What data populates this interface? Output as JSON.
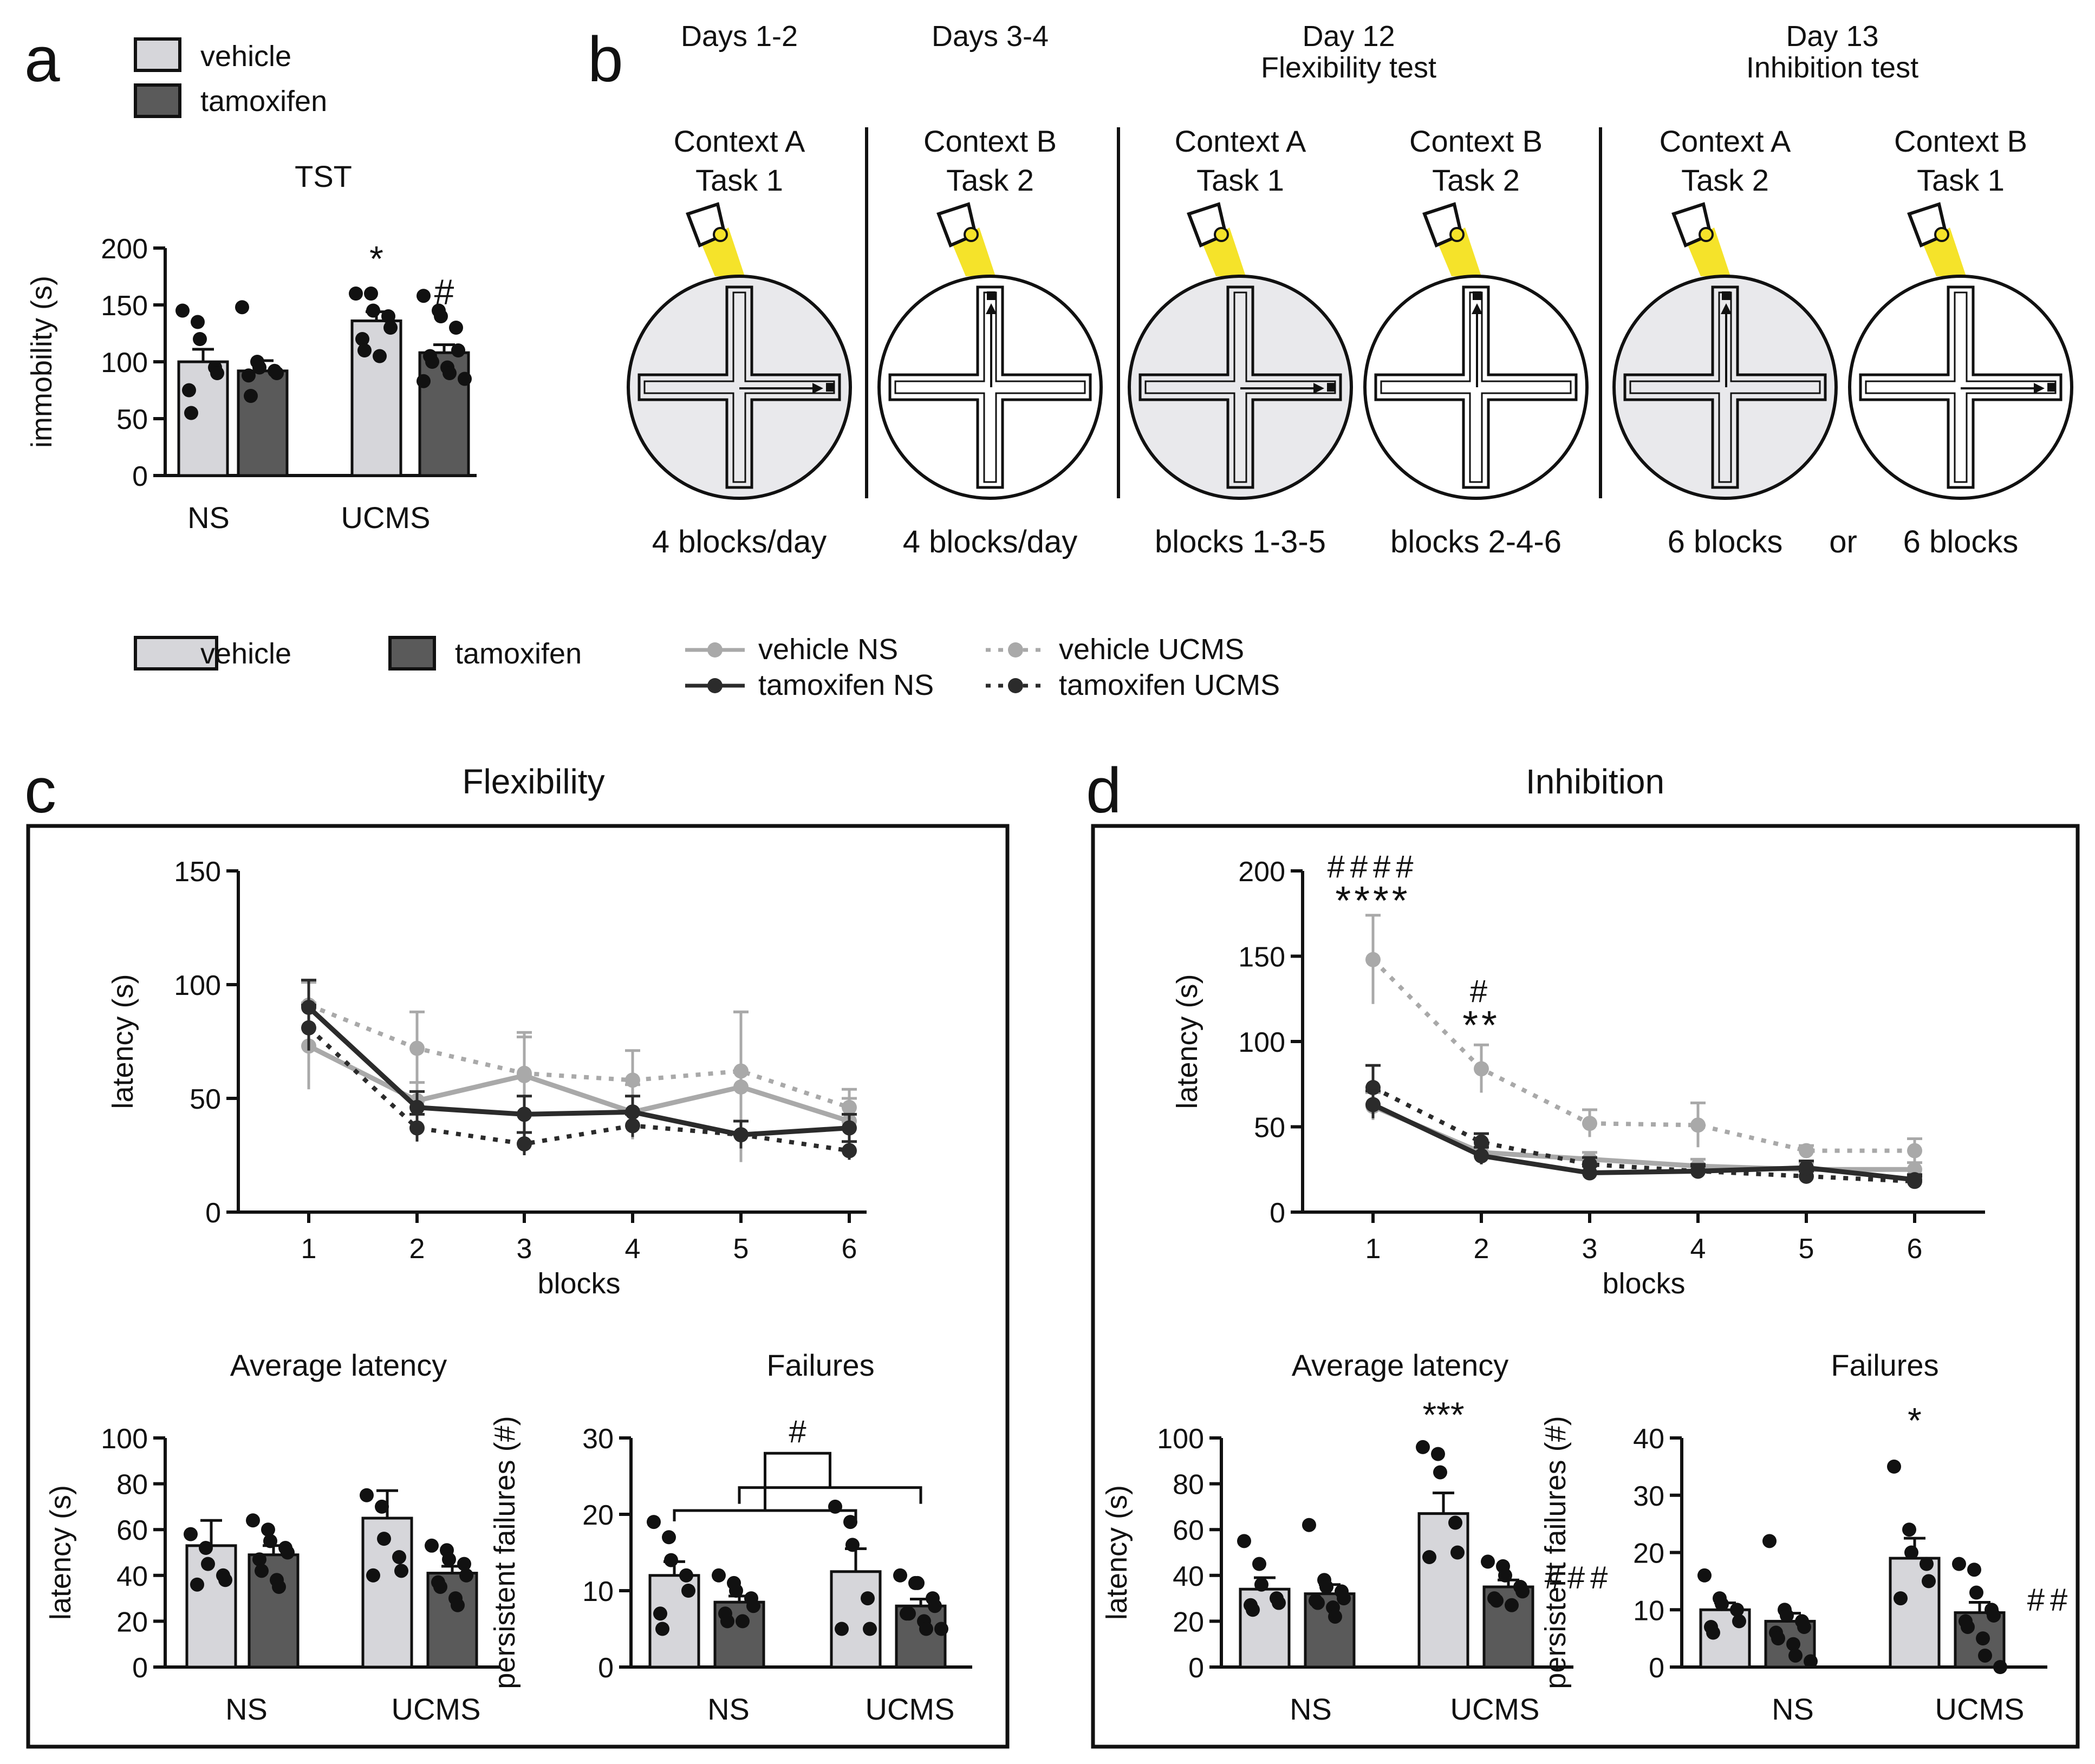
{
  "colors": {
    "vehicle": "#d6d6da",
    "tamoxifen": "#5a5a5a",
    "vehicle_line": "#a9a9a9",
    "tamoxifen_line": "#2b2b2b",
    "arena": "#e9e9ec",
    "light": "#f5e32a",
    "axis": "#111111"
  },
  "legend_top": {
    "vehicle": "vehicle",
    "tamoxifen": "tamoxifen"
  },
  "legend_mid": {
    "vehicle": "vehicle",
    "tamoxifen": "tamoxifen",
    "vehicle_ns": "vehicle NS",
    "tamoxifen_ns": "tamoxifen NS",
    "vehicle_ucms": "vehicle UCMS",
    "tamoxifen_ucms": "tamoxifen UCMS"
  },
  "panels": {
    "a": {
      "letter": "a"
    },
    "b": {
      "letter": "b"
    },
    "c": {
      "letter": "c",
      "title": "Flexibility"
    },
    "d": {
      "letter": "d",
      "title": "Inhibition"
    }
  },
  "schedule": {
    "phases": [
      {
        "day": "Days 1-2",
        "sub": ""
      },
      {
        "day": "Days 3-4",
        "sub": ""
      },
      {
        "day": "Day 12",
        "sub": "Flexibility test"
      },
      {
        "day": "Day 13",
        "sub": "Inhibition test"
      }
    ],
    "mazes": [
      {
        "context": "Context A",
        "task": "Task 1",
        "shaded": true,
        "goal": "right",
        "blocks": "4 blocks/day"
      },
      {
        "context": "Context B",
        "task": "Task 2",
        "shaded": false,
        "goal": "up",
        "blocks": "4 blocks/day"
      },
      {
        "context": "Context A",
        "task": "Task 1",
        "shaded": true,
        "goal": "right",
        "blocks": "blocks 1-3-5"
      },
      {
        "context": "Context B",
        "task": "Task 2",
        "shaded": false,
        "goal": "up",
        "blocks": "blocks 2-4-6"
      },
      {
        "context": "Context A",
        "task": "Task 2",
        "shaded": true,
        "goal": "up",
        "blocks": "6 blocks"
      },
      {
        "context": "Context B",
        "task": "Task 1",
        "shaded": false,
        "goal": "right",
        "blocks": "6 blocks"
      }
    ],
    "or_label": "or"
  },
  "chart_data": [
    {
      "id": "a_tst",
      "type": "bar",
      "title": "TST",
      "ylabel": "immobility (s)",
      "ylim": [
        0,
        200
      ],
      "yticks": [
        0,
        50,
        100,
        150,
        200
      ],
      "categories": [
        "NS",
        "UCMS"
      ],
      "series": [
        {
          "name": "vehicle",
          "values": [
            100,
            136
          ],
          "sem": [
            11,
            8
          ],
          "points": [
            [
              145,
              135,
              120,
              95,
              90,
              75,
              55
            ],
            [
              160,
              160,
              145,
              140,
              130,
              120,
              110,
              105
            ]
          ]
        },
        {
          "name": "tamoxifen",
          "values": [
            92,
            108
          ],
          "sem": [
            9,
            7
          ],
          "points": [
            [
              148,
              100,
              95,
              92,
              90,
              88,
              70
            ],
            [
              158,
              145,
              140,
              130,
              110,
              105,
              100,
              95,
              90,
              85,
              83
            ]
          ]
        }
      ],
      "annotations": [
        {
          "category": 1,
          "series": 0,
          "text": "*"
        },
        {
          "category": 1,
          "series": 1,
          "text": "#"
        }
      ]
    },
    {
      "id": "c_line",
      "type": "line",
      "title": "Flexibility",
      "xlabel": "blocks",
      "ylabel": "latency (s)",
      "x": [
        1,
        2,
        3,
        4,
        5,
        6
      ],
      "ylim": [
        0,
        150
      ],
      "yticks": [
        0,
        50,
        100,
        150
      ],
      "series": [
        {
          "name": "vehicle NS",
          "values": [
            73,
            49,
            60,
            44,
            55,
            40
          ],
          "sem": [
            19,
            8,
            17,
            12,
            33,
            10
          ]
        },
        {
          "name": "tamoxifen NS",
          "values": [
            90,
            46,
            43,
            44,
            34,
            37
          ],
          "sem": [
            12,
            7,
            8,
            7,
            6,
            6
          ]
        },
        {
          "name": "vehicle UCMS",
          "values": [
            91,
            72,
            61,
            58,
            62,
            46
          ],
          "sem": [
            10,
            16,
            18,
            13,
            26,
            8
          ]
        },
        {
          "name": "tamoxifen UCMS",
          "values": [
            81,
            37,
            30,
            38,
            34,
            27
          ],
          "sem": [
            10,
            6,
            5,
            5,
            6,
            4
          ]
        }
      ]
    },
    {
      "id": "c_avg",
      "type": "bar",
      "title": "Average latency",
      "ylabel": "latency (s)",
      "ylim": [
        0,
        100
      ],
      "yticks": [
        0,
        20,
        40,
        60,
        80,
        100
      ],
      "categories": [
        "NS",
        "UCMS"
      ],
      "series": [
        {
          "name": "vehicle",
          "values": [
            53,
            65
          ],
          "sem": [
            11,
            12
          ],
          "points": [
            [
              58,
              52,
              45,
              40,
              38,
              36
            ],
            [
              75,
              70,
              56,
              48,
              42,
              40
            ]
          ]
        },
        {
          "name": "tamoxifen",
          "values": [
            49,
            41
          ],
          "sem": [
            4,
            3
          ],
          "points": [
            [
              64,
              60,
              55,
              52,
              50,
              47,
              42,
              38,
              35
            ],
            [
              53,
              51,
              47,
              45,
              40,
              37,
              35,
              30,
              27
            ]
          ]
        }
      ]
    },
    {
      "id": "c_fail",
      "type": "bar",
      "title": "Failures",
      "ylabel": "persistent failures (#)",
      "ylim": [
        0,
        30
      ],
      "yticks": [
        0,
        10,
        20,
        30
      ],
      "categories": [
        "NS",
        "UCMS"
      ],
      "series": [
        {
          "name": "vehicle",
          "values": [
            12,
            12.5
          ],
          "sem": [
            1.8,
            3
          ],
          "points": [
            [
              19,
              17,
              14,
              12,
              10,
              7,
              5
            ],
            [
              21,
              19,
              16,
              9,
              5,
              5
            ]
          ]
        },
        {
          "name": "tamoxifen",
          "values": [
            8.5,
            8
          ],
          "sem": [
            0.8,
            0.9
          ],
          "points": [
            [
              12,
              11,
              10,
              9,
              8,
              7,
              6,
              6
            ],
            [
              12,
              11,
              11,
              9,
              8,
              7,
              7,
              6,
              5,
              5
            ]
          ]
        }
      ],
      "significance": "#"
    },
    {
      "id": "d_line",
      "type": "line",
      "title": "Inhibition",
      "xlabel": "blocks",
      "ylabel": "latency (s)",
      "x": [
        1,
        2,
        3,
        4,
        5,
        6
      ],
      "ylim": [
        0,
        200
      ],
      "yticks": [
        0,
        50,
        100,
        150,
        200
      ],
      "series": [
        {
          "name": "vehicle NS",
          "values": [
            62,
            35,
            31,
            27,
            25,
            25
          ],
          "sem": [
            8,
            5,
            4,
            4,
            4,
            4
          ]
        },
        {
          "name": "tamoxifen NS",
          "values": [
            63,
            33,
            23,
            24,
            26,
            19
          ],
          "sem": [
            8,
            5,
            4,
            4,
            4,
            3
          ]
        },
        {
          "name": "vehicle UCMS",
          "values": [
            148,
            84,
            52,
            51,
            36,
            36
          ],
          "sem": [
            26,
            14,
            8,
            13,
            3,
            7
          ]
        },
        {
          "name": "tamoxifen UCMS",
          "values": [
            73,
            41,
            28,
            24,
            21,
            18
          ],
          "sem": [
            13,
            5,
            4,
            3,
            3,
            3
          ]
        }
      ],
      "annotations": [
        {
          "x": 1,
          "lines": [
            "####",
            "****"
          ]
        },
        {
          "x": 2,
          "lines": [
            "#",
            "**"
          ]
        }
      ]
    },
    {
      "id": "d_avg",
      "type": "bar",
      "title": "Average latency",
      "ylabel": "latency (s)",
      "ylim": [
        0,
        100
      ],
      "yticks": [
        0,
        20,
        40,
        60,
        80,
        100
      ],
      "categories": [
        "NS",
        "UCMS"
      ],
      "series": [
        {
          "name": "vehicle",
          "values": [
            34,
            67
          ],
          "sem": [
            5,
            9
          ],
          "points": [
            [
              55,
              45,
              36,
              30,
              28,
              27,
              25
            ],
            [
              96,
              93,
              85,
              63,
              50,
              48
            ]
          ]
        },
        {
          "name": "tamoxifen",
          "values": [
            32,
            35
          ],
          "sem": [
            4,
            3
          ],
          "points": [
            [
              62,
              38,
              35,
              33,
              30,
              29,
              28,
              26,
              22
            ],
            [
              46,
              44,
              40,
              35,
              33,
              30,
              29,
              27
            ]
          ]
        }
      ],
      "annotations": [
        {
          "category": 1,
          "series": 0,
          "text": "***"
        },
        {
          "category": 1,
          "series": 1,
          "text": "###"
        }
      ]
    },
    {
      "id": "d_fail",
      "type": "bar",
      "title": "Failures",
      "ylabel": "persistent failures (#)",
      "ylim": [
        0,
        40
      ],
      "yticks": [
        0,
        10,
        20,
        30,
        40
      ],
      "categories": [
        "NS",
        "UCMS"
      ],
      "series": [
        {
          "name": "vehicle",
          "values": [
            10,
            19
          ],
          "sem": [
            1.2,
            3.5
          ],
          "points": [
            [
              16,
              12,
              11,
              10,
              8,
              7,
              6
            ],
            [
              35,
              24,
              20,
              18,
              15,
              12
            ]
          ]
        },
        {
          "name": "tamoxifen",
          "values": [
            8,
            9.5
          ],
          "sem": [
            1.4,
            1.8
          ],
          "points": [
            [
              22,
              10,
              9,
              8,
              7,
              6,
              5,
              4,
              2,
              1
            ],
            [
              18,
              17,
              13,
              10,
              9,
              8,
              7,
              5,
              2,
              0
            ]
          ]
        }
      ],
      "annotations": [
        {
          "category": 1,
          "series": 0,
          "text": "*"
        },
        {
          "category": 1,
          "series": 1,
          "text": "##"
        }
      ]
    }
  ]
}
